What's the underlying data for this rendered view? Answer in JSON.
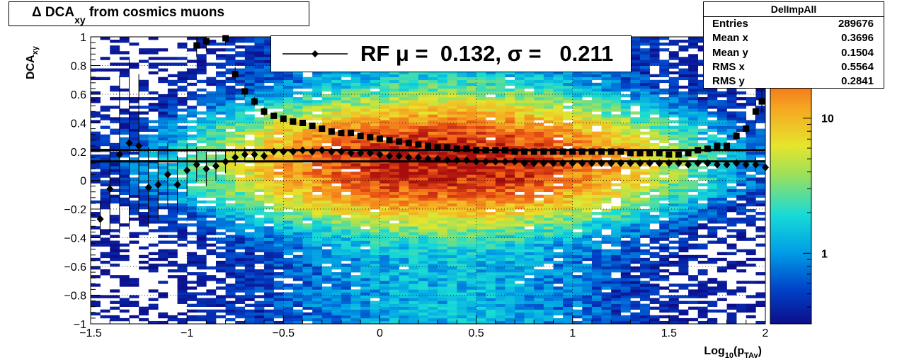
{
  "title": {
    "main": "Δ DCA",
    "sub": "xy",
    "rest": " from cosmics muons"
  },
  "stats": {
    "name": "DelImpAll",
    "rows": [
      {
        "key": "Entries",
        "value": "289676"
      },
      {
        "key": "Mean x",
        "value": "0.3696"
      },
      {
        "key": "Mean y",
        "value": "0.1504"
      },
      {
        "key": "RMS x",
        "value": "0.5564"
      },
      {
        "key": "RMS y",
        "value": "0.2841"
      }
    ]
  },
  "legend": {
    "label": "RF μ =  0.132, σ =   0.211"
  },
  "chart_data": {
    "type": "heatmap",
    "title": "Δ DCA_xy from cosmics muons",
    "xlabel": "Log10(pTAv)",
    "ylabel": "DCAxy",
    "xlim": [
      -1.5,
      2
    ],
    "ylim": [
      -1,
      1
    ],
    "x_ticks": [
      "−1.5",
      "−1",
      "−0.5",
      "0",
      "0.5",
      "1",
      "1.5",
      "2"
    ],
    "x_tick_values": [
      -1.5,
      -1,
      -0.5,
      0,
      0.5,
      1,
      1.5,
      2
    ],
    "y_ticks": [
      "−1",
      "−0.8",
      "−0.6",
      "−0.4",
      "−0.2",
      "0",
      "0.2",
      "0.4",
      "0.6",
      "0.8",
      "1"
    ],
    "y_tick_values": [
      -1,
      -0.8,
      -0.6,
      -0.4,
      -0.2,
      0,
      0.2,
      0.4,
      0.6,
      0.8,
      1
    ],
    "grid": true,
    "color_scale": {
      "type": "log",
      "ticks": [
        "1",
        "10"
      ],
      "tick_values": [
        1,
        10
      ],
      "range": [
        0.3,
        40
      ]
    },
    "density": {
      "x_center": 0.35,
      "x_sigma": 0.55,
      "y_center": 0.13,
      "y_sigma": 0.2,
      "peak": 40
    },
    "series": [
      {
        "name": "RF",
        "marker": "diamond",
        "x": [
          -1.45,
          -1.4,
          -1.35,
          -1.3,
          -1.25,
          -1.2,
          -1.15,
          -1.1,
          -1.05,
          -1.0,
          -0.95,
          -0.9,
          -0.85,
          -0.8,
          -0.75,
          -0.7,
          -0.65,
          -0.6,
          -0.55,
          -0.5,
          -0.45,
          -0.4,
          -0.35,
          -0.3,
          -0.25,
          -0.2,
          -0.15,
          -0.1,
          -0.05,
          0.0,
          0.05,
          0.1,
          0.15,
          0.2,
          0.25,
          0.3,
          0.35,
          0.4,
          0.45,
          0.5,
          0.55,
          0.6,
          0.65,
          0.7,
          0.75,
          0.8,
          0.85,
          0.9,
          0.95,
          1.0,
          1.05,
          1.1,
          1.15,
          1.2,
          1.25,
          1.3,
          1.35,
          1.4,
          1.45,
          1.5,
          1.55,
          1.6,
          1.65,
          1.7,
          1.75,
          1.8,
          1.85,
          1.9,
          1.95,
          2.0
        ],
        "y": [
          -0.27,
          -0.06,
          0.18,
          0.26,
          0.24,
          -0.05,
          -0.03,
          0.04,
          -0.03,
          0.07,
          0.11,
          0.08,
          0.1,
          0.13,
          0.16,
          0.18,
          0.18,
          0.17,
          0.2,
          0.2,
          0.2,
          0.21,
          0.2,
          0.21,
          0.2,
          0.2,
          0.19,
          0.19,
          0.19,
          0.18,
          0.17,
          0.17,
          0.16,
          0.16,
          0.15,
          0.15,
          0.14,
          0.14,
          0.14,
          0.13,
          0.13,
          0.13,
          0.13,
          0.13,
          0.12,
          0.12,
          0.12,
          0.12,
          0.12,
          0.12,
          0.12,
          0.12,
          0.12,
          0.12,
          0.12,
          0.12,
          0.12,
          0.12,
          0.12,
          0.12,
          0.12,
          0.11,
          0.12,
          0.12,
          0.11,
          0.11,
          0.12,
          0.11,
          0.11,
          0.09
        ],
        "err": [
          0.12,
          0.3,
          0.55,
          0.6,
          0.5,
          0.28,
          0.25,
          0.22,
          0.2,
          0.18,
          0.12,
          0.12,
          0.1,
          0.08,
          0.06,
          0.05,
          0.04,
          0.03,
          0.02,
          0.02,
          0.01,
          0.01,
          0.01,
          0.01,
          0.01,
          0.01,
          0.01,
          0.01,
          0.01,
          0.01,
          0.01,
          0.01,
          0.01,
          0.01,
          0.01,
          0.01,
          0.01,
          0.01,
          0.01,
          0.01,
          0.01,
          0.01,
          0.01,
          0.01,
          0.01,
          0.01,
          0.01,
          0.01,
          0.01,
          0.01,
          0.01,
          0.01,
          0.01,
          0.01,
          0.01,
          0.01,
          0.01,
          0.01,
          0.01,
          0.01,
          0.01,
          0.01,
          0.01,
          0.01,
          0.01,
          0.02,
          0.02,
          0.03,
          0.05,
          0.06
        ]
      },
      {
        "name": "",
        "marker": "square",
        "x": [
          -0.95,
          -0.9,
          -0.8,
          -0.75,
          -0.7,
          -0.65,
          -0.6,
          -0.55,
          -0.5,
          -0.45,
          -0.4,
          -0.35,
          -0.3,
          -0.25,
          -0.2,
          -0.15,
          -0.1,
          -0.05,
          0.0,
          0.05,
          0.1,
          0.15,
          0.2,
          0.25,
          0.3,
          0.35,
          0.4,
          0.45,
          0.5,
          0.55,
          0.6,
          0.65,
          0.7,
          0.75,
          0.8,
          0.85,
          0.9,
          0.95,
          1.0,
          1.05,
          1.1,
          1.15,
          1.2,
          1.25,
          1.3,
          1.35,
          1.4,
          1.45,
          1.5,
          1.55,
          1.6,
          1.65,
          1.7,
          1.75,
          1.8,
          1.85,
          1.9,
          1.95
        ],
        "y": [
          0.94,
          0.97,
          0.99,
          0.74,
          0.62,
          0.55,
          0.48,
          0.45,
          0.43,
          0.41,
          0.4,
          0.38,
          0.36,
          0.34,
          0.33,
          0.33,
          0.31,
          0.3,
          0.29,
          0.28,
          0.27,
          0.26,
          0.25,
          0.24,
          0.23,
          0.23,
          0.22,
          0.22,
          0.21,
          0.21,
          0.21,
          0.21,
          0.2,
          0.2,
          0.2,
          0.2,
          0.2,
          0.2,
          0.2,
          0.2,
          0.2,
          0.2,
          0.2,
          0.2,
          0.19,
          0.19,
          0.19,
          0.19,
          0.18,
          0.18,
          0.19,
          0.21,
          0.22,
          0.24,
          0.24,
          0.31,
          0.36,
          0.48
        ],
        "err": [
          0.08,
          0.07,
          0.05,
          0.05,
          0.04,
          0.03,
          0.03,
          0.02,
          0.02,
          0.02,
          0.02,
          0.01,
          0.01,
          0.01,
          0.01,
          0.01,
          0.01,
          0.01,
          0.01,
          0.01,
          0.01,
          0.01,
          0.01,
          0.01,
          0.01,
          0.01,
          0.01,
          0.01,
          0.01,
          0.01,
          0.01,
          0.01,
          0.01,
          0.01,
          0.01,
          0.01,
          0.01,
          0.01,
          0.01,
          0.01,
          0.01,
          0.01,
          0.01,
          0.01,
          0.01,
          0.01,
          0.01,
          0.01,
          0.01,
          0.01,
          0.01,
          0.01,
          0.01,
          0.01,
          0.02,
          0.03,
          0.04,
          0.08
        ]
      }
    ],
    "reference_lines": [
      0.132,
      0.211
    ],
    "extra_square_point": {
      "x": 2.0,
      "y": 0.55
    }
  }
}
